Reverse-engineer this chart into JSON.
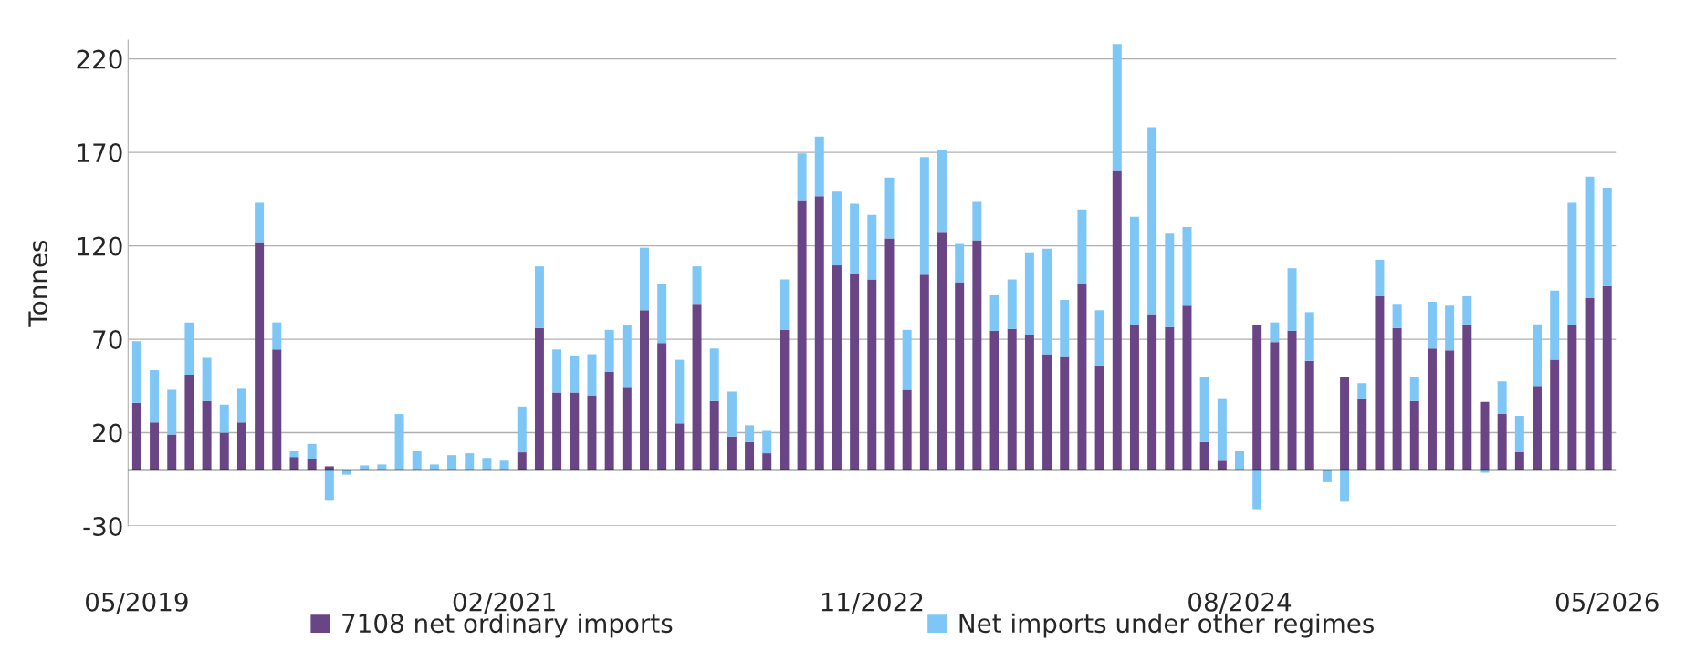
{
  "chart_data": {
    "type": "bar",
    "stacked": true,
    "ylabel": "Tonnes",
    "categories": [
      "05/2019",
      null,
      null,
      null,
      null,
      null,
      null,
      null,
      null,
      null,
      null,
      null,
      null,
      null,
      null,
      null,
      null,
      null,
      null,
      null,
      null,
      "02/2021",
      null,
      null,
      null,
      null,
      null,
      null,
      null,
      null,
      null,
      null,
      null,
      null,
      null,
      null,
      null,
      null,
      null,
      null,
      null,
      null,
      "11/2022",
      null,
      null,
      null,
      null,
      null,
      null,
      null,
      null,
      null,
      null,
      null,
      null,
      null,
      null,
      null,
      null,
      null,
      null,
      null,
      null,
      "08/2024",
      null,
      null,
      null,
      null,
      null,
      null,
      null,
      null,
      null,
      null,
      null,
      null,
      null,
      null,
      null,
      null,
      null,
      null,
      null,
      null,
      "05/2026"
    ],
    "series": [
      {
        "name": "7108 net ordinary imports",
        "color": "#6a4585",
        "values": [
          36,
          25.5,
          19,
          51,
          37,
          20,
          25.5,
          122,
          64.5,
          7,
          6,
          2,
          0,
          0,
          0,
          0,
          0,
          0,
          0,
          0,
          0,
          0,
          9.5,
          76,
          41.5,
          41.5,
          40,
          52.5,
          44,
          85.5,
          68,
          25,
          89,
          37,
          18,
          15,
          9,
          75,
          144.5,
          146.5,
          109.5,
          105,
          102,
          124,
          43,
          104.5,
          127,
          100.5,
          123,
          74.5,
          75.5,
          72.5,
          62,
          60.5,
          99.5,
          56,
          160,
          77.5,
          83.5,
          76.5,
          88,
          15,
          5,
          0,
          77.5,
          68.5,
          74.5,
          58.5,
          0,
          49.5,
          38,
          93,
          76,
          37,
          65,
          64,
          78,
          36.5,
          30,
          9.5,
          45,
          59,
          77.5,
          92,
          98.5
        ]
      },
      {
        "name": "Net imports under other regimes",
        "color": "#7dc6f5",
        "values": [
          33,
          28,
          24,
          28,
          23,
          15,
          18,
          21,
          14.5,
          3,
          8,
          -16,
          -2.5,
          2.5,
          3,
          30,
          10,
          3,
          8,
          9,
          6.5,
          5,
          24.5,
          33,
          23,
          19.5,
          22,
          22.5,
          33.5,
          33.5,
          31.5,
          34,
          20,
          28,
          24,
          9,
          12,
          27,
          25,
          32,
          39.5,
          37.5,
          34.5,
          32.5,
          32,
          63,
          44.5,
          20.5,
          20.5,
          19,
          26.5,
          44,
          56.5,
          30.5,
          40,
          29.5,
          68,
          58,
          100,
          50,
          42,
          35,
          33,
          10,
          -21,
          10.5,
          33.5,
          26,
          -6.5,
          -17,
          8.5,
          19.5,
          13,
          12.5,
          25,
          24,
          15,
          -1.5,
          17.5,
          19.5,
          33,
          37,
          65.5,
          65,
          52.5
        ]
      }
    ],
    "ylim": [
      -30,
      230
    ],
    "yticks": [
      -30,
      20,
      70,
      120,
      170,
      220
    ],
    "grid": "y",
    "legend": "bottom"
  }
}
